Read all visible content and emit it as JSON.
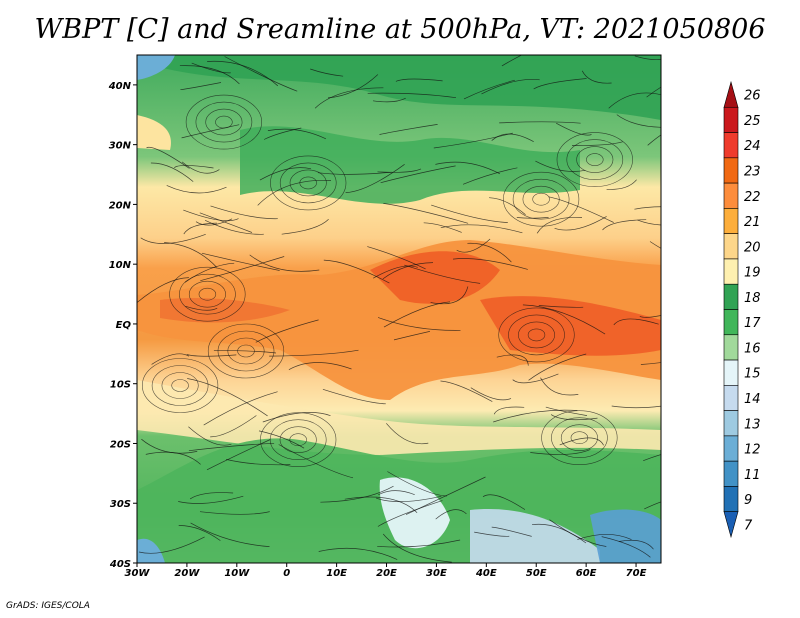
{
  "title": "WBPT [C] and Sreamline at 500hPa, VT: 2021050806",
  "credit": "GrADS: IGES/COLA",
  "map": {
    "lon_range": [
      -30,
      75
    ],
    "lat_range": [
      -40,
      45
    ],
    "lat_ticks": [
      {
        "value": 40,
        "label": "40N"
      },
      {
        "value": 30,
        "label": "30N"
      },
      {
        "value": 20,
        "label": "20N"
      },
      {
        "value": 10,
        "label": "10N"
      },
      {
        "value": 0,
        "label": "EQ"
      },
      {
        "value": -10,
        "label": "10S"
      },
      {
        "value": -20,
        "label": "20S"
      },
      {
        "value": -30,
        "label": "30S"
      },
      {
        "value": -40,
        "label": "40S"
      }
    ],
    "lon_ticks": [
      {
        "value": -30,
        "label": "30W"
      },
      {
        "value": -20,
        "label": "20W"
      },
      {
        "value": -10,
        "label": "10W"
      },
      {
        "value": 0,
        "label": "0"
      },
      {
        "value": 10,
        "label": "10E"
      },
      {
        "value": 20,
        "label": "20E"
      },
      {
        "value": 30,
        "label": "30E"
      },
      {
        "value": 40,
        "label": "40E"
      },
      {
        "value": 50,
        "label": "50E"
      },
      {
        "value": 60,
        "label": "60E"
      },
      {
        "value": 70,
        "label": "70E"
      }
    ]
  },
  "colorbar": {
    "levels": [
      {
        "label": "26",
        "color": "#a50f15"
      },
      {
        "label": "25",
        "color": "#cb181d"
      },
      {
        "label": "24",
        "color": "#ef3b2c"
      },
      {
        "label": "23",
        "color": "#f16913"
      },
      {
        "label": "22",
        "color": "#fd8d3c"
      },
      {
        "label": "21",
        "color": "#fdae3b"
      },
      {
        "label": "20",
        "color": "#fdd68a"
      },
      {
        "label": "19",
        "color": "#fef0b0"
      },
      {
        "label": "18",
        "color": "#31a354"
      },
      {
        "label": "17",
        "color": "#41b65a"
      },
      {
        "label": "16",
        "color": "#a1d99b"
      },
      {
        "label": "15",
        "color": "#e5f5f9"
      },
      {
        "label": "14",
        "color": "#c6dbef"
      },
      {
        "label": "13",
        "color": "#9ecae1"
      },
      {
        "label": "12",
        "color": "#6baed6"
      },
      {
        "label": "11",
        "color": "#4292c6"
      },
      {
        "label": "9",
        "color": "#2171b5"
      },
      {
        "label": "7",
        "color": "#1a5fb4"
      }
    ]
  },
  "chart_data": {
    "type": "heatmap",
    "title": "WBPT [C] and Sreamline at 500hPa, VT: 2021050806",
    "variable": "WBPT [C]",
    "level": "500hPa",
    "valid_time": "2021050806",
    "x_range": [
      -30,
      75
    ],
    "y_range": [
      -40,
      45
    ],
    "bands": [
      {
        "lat_from": 45,
        "lat_to": 25,
        "value": 17
      },
      {
        "lat_from": 25,
        "lat_to": 13,
        "value": 19
      },
      {
        "lat_from": 13,
        "lat_to": -5,
        "value": 22
      },
      {
        "lat_from": -5,
        "lat_to": -17,
        "value": 19
      },
      {
        "lat_from": -17,
        "lat_to": -32,
        "value": 17
      },
      {
        "lat_from": -32,
        "lat_to": -40,
        "value": 14
      }
    ]
  }
}
